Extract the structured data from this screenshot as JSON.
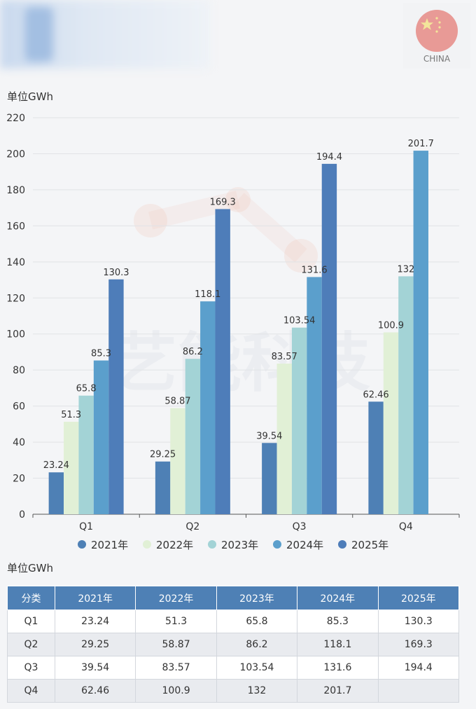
{
  "header": {
    "badge_label": "CHINA"
  },
  "unit_top": "单位GWh",
  "unit_table": "单位GWh",
  "watermark": "艺能科技",
  "chart_data": {
    "type": "bar",
    "categories": [
      "Q1",
      "Q2",
      "Q3",
      "Q4"
    ],
    "series": [
      {
        "name": "2021年",
        "color": "#4e80b5",
        "values": [
          23.24,
          29.25,
          39.54,
          62.46
        ],
        "labels": [
          "23.24",
          "29.25",
          "39.54",
          "62.46"
        ]
      },
      {
        "name": "2022年",
        "color": "#e1f0d6",
        "values": [
          51.3,
          58.87,
          83.57,
          100.9
        ],
        "labels": [
          "51.3",
          "58.87",
          "83.57",
          "100.9"
        ]
      },
      {
        "name": "2023年",
        "color": "#a3d3d6",
        "values": [
          65.8,
          86.2,
          103.54,
          132
        ],
        "labels": [
          "65.8",
          "86.2",
          "103.54",
          "132"
        ]
      },
      {
        "name": "2024年",
        "color": "#5b9fcc",
        "values": [
          85.3,
          118.1,
          131.6,
          201.7
        ],
        "labels": [
          "85.3",
          "118.1",
          "131.6",
          "201.7"
        ]
      },
      {
        "name": "2025年",
        "color": "#4e7db9",
        "values": [
          130.3,
          169.3,
          194.4,
          null
        ],
        "labels": [
          "130.3",
          "169.3",
          "194.4",
          ""
        ]
      }
    ],
    "yticks": [
      "220",
      "200",
      "180",
      "160",
      "140",
      "120",
      "100",
      "80",
      "60",
      "40",
      "20",
      "0"
    ],
    "ylim": [
      0,
      220
    ],
    "ylabel": "单位GWh",
    "legend_position": "bottom"
  },
  "table": {
    "headers": [
      "分类",
      "2021年",
      "2022年",
      "2023年",
      "2024年",
      "2025年"
    ],
    "rows": [
      [
        "Q1",
        "23.24",
        "51.3",
        "65.8",
        "85.3",
        "130.3"
      ],
      [
        "Q2",
        "29.25",
        "58.87",
        "86.2",
        "118.1",
        "169.3"
      ],
      [
        "Q3",
        "39.54",
        "83.57",
        "103.54",
        "131.6",
        "194.4"
      ],
      [
        "Q4",
        "62.46",
        "100.9",
        "132",
        "201.7",
        ""
      ]
    ]
  }
}
